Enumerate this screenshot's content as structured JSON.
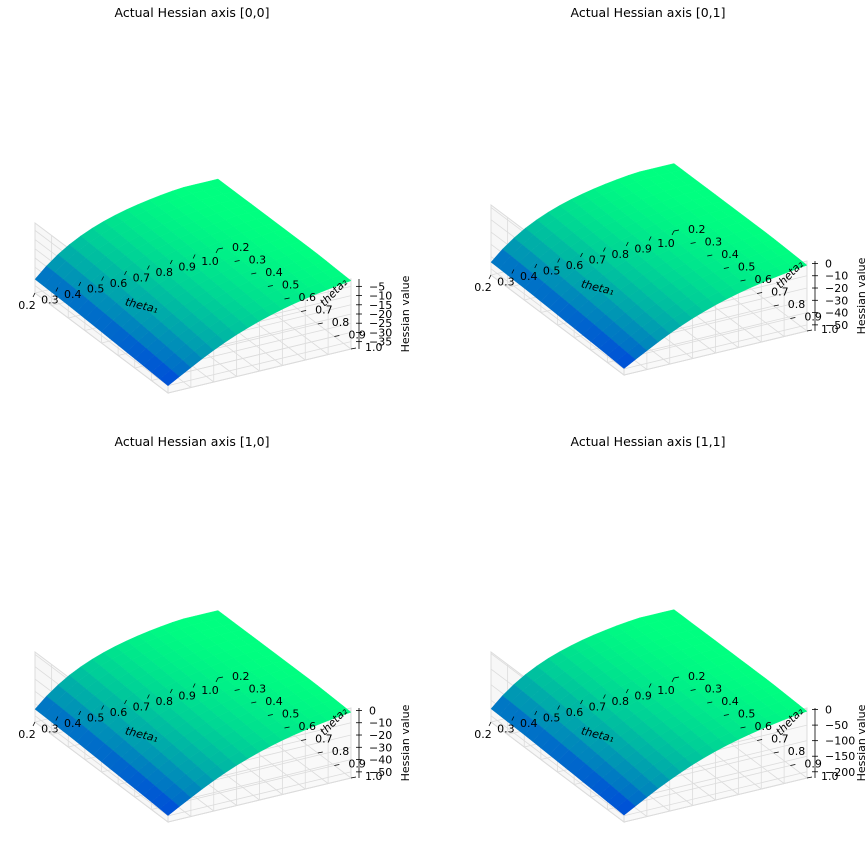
{
  "chart_data": [
    {
      "type": "surface3d",
      "title": "Actual Hessian axis [0,0]",
      "xlabel": "theta₁",
      "ylabel": "theta₂",
      "zlabel": "Hessian value",
      "x_ticks": [
        "0.2",
        "0.3",
        "0.4",
        "0.5",
        "0.6",
        "0.7",
        "0.8",
        "0.9",
        "1.0"
      ],
      "y_ticks": [
        "0.2",
        "0.3",
        "0.4",
        "0.5",
        "0.6",
        "0.7",
        "0.8",
        "0.9",
        "1.0"
      ],
      "z_ticks": [
        -35,
        -30,
        -25,
        -20,
        -15,
        -10,
        -5
      ],
      "xlim": [
        0.2,
        1.0
      ],
      "ylim": [
        0.2,
        1.0
      ],
      "zlim": [
        -39,
        -1
      ],
      "z_min": -38,
      "z_max": -1,
      "colormap": "winter",
      "colors": {
        "low": "#0000ff",
        "high": "#00ff80",
        "pane": "#f2f2f2",
        "grid": "#dcdcdc"
      }
    },
    {
      "type": "surface3d",
      "title": "Actual Hessian axis [0,1]",
      "xlabel": "theta₁",
      "ylabel": "theta₂",
      "zlabel": "Hessian value",
      "x_ticks": [
        "0.2",
        "0.3",
        "0.4",
        "0.5",
        "0.6",
        "0.7",
        "0.8",
        "0.9",
        "1.0"
      ],
      "y_ticks": [
        "0.2",
        "0.3",
        "0.4",
        "0.5",
        "0.6",
        "0.7",
        "0.8",
        "0.9",
        "1.0"
      ],
      "z_ticks": [
        -50,
        -40,
        -30,
        -20,
        -10,
        0
      ],
      "xlim": [
        0.2,
        1.0
      ],
      "ylim": [
        0.2,
        1.0
      ],
      "zlim": [
        -55,
        2
      ],
      "z_min": -54,
      "z_max": 0,
      "colormap": "winter",
      "colors": {
        "low": "#0000ff",
        "high": "#00ff80",
        "pane": "#f2f2f2",
        "grid": "#dcdcdc"
      }
    },
    {
      "type": "surface3d",
      "title": "Actual Hessian axis [1,0]",
      "xlabel": "theta₁",
      "ylabel": "theta₂",
      "zlabel": "Hessian value",
      "x_ticks": [
        "0.2",
        "0.3",
        "0.4",
        "0.5",
        "0.6",
        "0.7",
        "0.8",
        "0.9",
        "1.0"
      ],
      "y_ticks": [
        "0.2",
        "0.3",
        "0.4",
        "0.5",
        "0.6",
        "0.7",
        "0.8",
        "0.9",
        "1.0"
      ],
      "z_ticks": [
        -50,
        -40,
        -30,
        -20,
        -10,
        0
      ],
      "xlim": [
        0.2,
        1.0
      ],
      "ylim": [
        0.2,
        1.0
      ],
      "zlim": [
        -55,
        2
      ],
      "z_min": -54,
      "z_max": 0,
      "colormap": "winter",
      "colors": {
        "low": "#0000ff",
        "high": "#00ff80",
        "pane": "#f2f2f2",
        "grid": "#dcdcdc"
      }
    },
    {
      "type": "surface3d",
      "title": "Actual Hessian axis [1,1]",
      "xlabel": "theta₁",
      "ylabel": "theta₂",
      "zlabel": "Hessian value",
      "x_ticks": [
        "0.2",
        "0.3",
        "0.4",
        "0.5",
        "0.6",
        "0.7",
        "0.8",
        "0.9",
        "1.0"
      ],
      "y_ticks": [
        "0.2",
        "0.3",
        "0.4",
        "0.5",
        "0.6",
        "0.7",
        "0.8",
        "0.9",
        "1.0"
      ],
      "z_ticks": [
        -200,
        -150,
        -100,
        -50,
        0
      ],
      "xlim": [
        0.2,
        1.0
      ],
      "ylim": [
        0.2,
        1.0
      ],
      "zlim": [
        -220,
        5
      ],
      "z_min": -215,
      "z_max": 0,
      "colormap": "winter",
      "colors": {
        "low": "#0000ff",
        "high": "#00ff80",
        "pane": "#f2f2f2",
        "grid": "#dcdcdc"
      }
    }
  ]
}
